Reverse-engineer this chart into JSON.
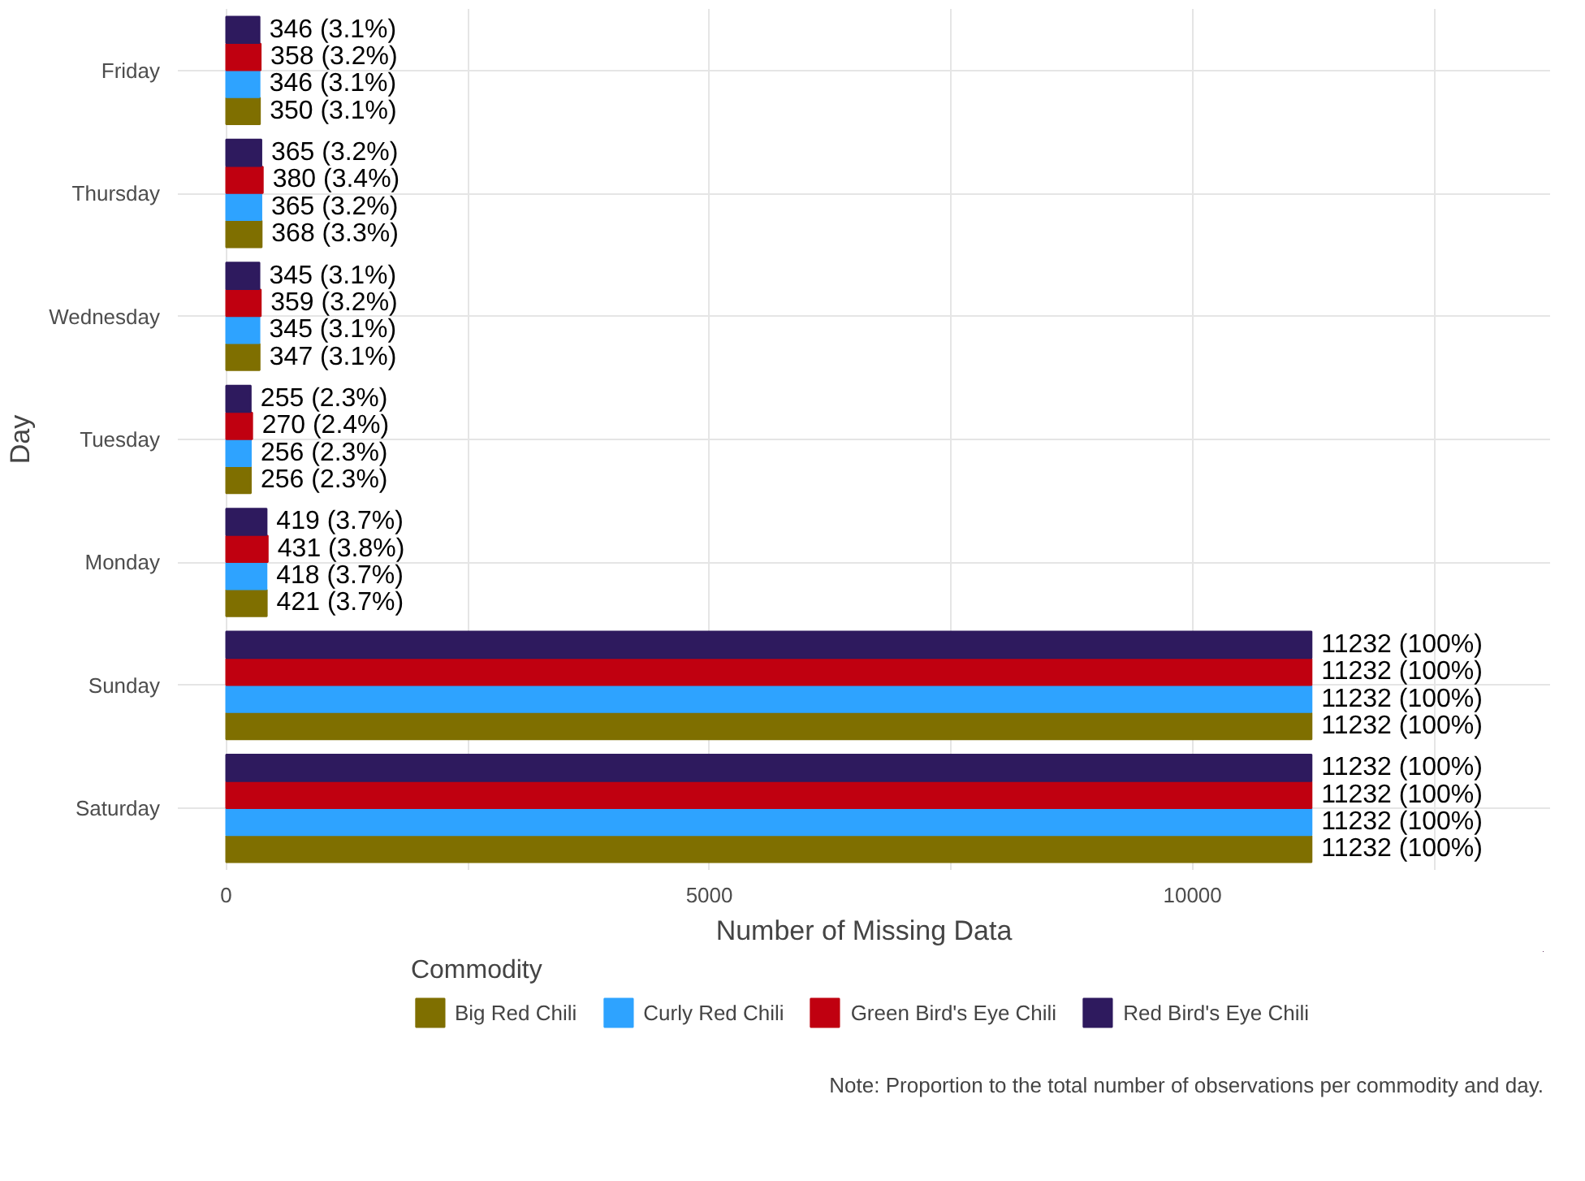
{
  "chart_data": {
    "type": "bar",
    "orientation": "horizontal",
    "xlabel": "Number of Missing Data",
    "ylabel": "Day",
    "categories": [
      "Friday",
      "Thursday",
      "Wednesday",
      "Tuesday",
      "Monday",
      "Sunday",
      "Saturday"
    ],
    "series": [
      {
        "name": "Big Red Chili",
        "color": "#7f6f00",
        "values": [
          350,
          368,
          347,
          256,
          421,
          11232,
          11232
        ],
        "value_labels": [
          "350 (3.1%)",
          "368 (3.3%)",
          "347 (3.1%)",
          "256 (2.3%)",
          "421 (3.7%)",
          "11232 (100%)",
          "11232 (100%)"
        ]
      },
      {
        "name": "Curly Red Chili",
        "color": "#2ea3ff",
        "values": [
          346,
          365,
          345,
          256,
          418,
          11232,
          11232
        ],
        "value_labels": [
          "346 (3.1%)",
          "365 (3.2%)",
          "345 (3.1%)",
          "256 (2.3%)",
          "418 (3.7%)",
          "11232 (100%)",
          "11232 (100%)"
        ]
      },
      {
        "name": "Green Bird's Eye Chili",
        "color": "#c00010",
        "values": [
          358,
          380,
          359,
          270,
          431,
          11232,
          11232
        ],
        "value_labels": [
          "358 (3.2%)",
          "380 (3.4%)",
          "359 (3.2%)",
          "270 (2.4%)",
          "431 (3.8%)",
          "11232 (100%)",
          "11232 (100%)"
        ]
      },
      {
        "name": "Red Bird's Eye Chili",
        "color": "#2e1a5e",
        "values": [
          346,
          365,
          345,
          255,
          419,
          11232,
          11232
        ],
        "value_labels": [
          "346 (3.1%)",
          "365 (3.2%)",
          "345 (3.1%)",
          "255 (2.3%)",
          "419 (3.7%)",
          "11232 (100%)",
          "11232 (100%)"
        ]
      }
    ],
    "xlim": [
      -500,
      13700
    ],
    "xticks": [
      0,
      {
        "value": 2500,
        "label": null
      },
      5000,
      {
        "value": 7500,
        "label": null
      },
      10000,
      {
        "value": 12500,
        "label": null
      }
    ],
    "grid": true,
    "legend": "bottom",
    "legend_title": "Commodity",
    "annotations": [
      "Note: Proportion to the total number of observations per commodity and day."
    ]
  }
}
